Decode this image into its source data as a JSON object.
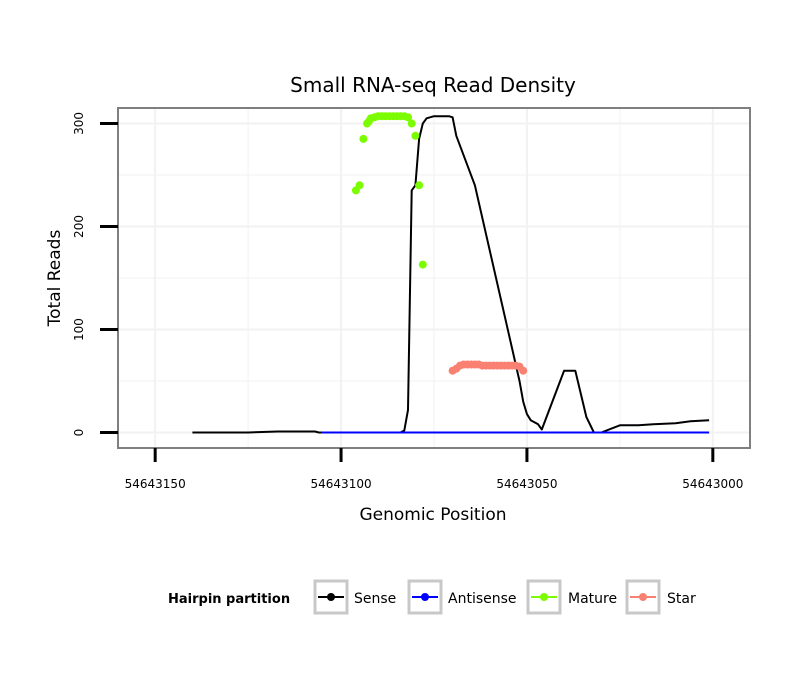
{
  "chart_data": {
    "type": "line",
    "title": "Small RNA-seq Read Density",
    "xlabel": "Genomic Position",
    "ylabel": "Total Reads",
    "x_reversed": true,
    "xlim": [
      54643160,
      54642990
    ],
    "ylim": [
      -15,
      315
    ],
    "xticks": [
      54643150,
      54643100,
      54643050,
      54643000
    ],
    "xtick_labels": [
      "54643150",
      "54643100",
      "54643050",
      "54643000"
    ],
    "yticks": [
      0,
      100,
      200,
      300
    ],
    "ytick_labels": [
      "0",
      "100",
      "200",
      "300"
    ],
    "grid": true,
    "legend": {
      "title": "Hairpin partition",
      "placement": "bottom",
      "entries": [
        {
          "name": "Sense",
          "color": "#000000"
        },
        {
          "name": "Antisense",
          "color": "#0000ff"
        },
        {
          "name": "Mature",
          "color": "#7cfc00"
        },
        {
          "name": "Star",
          "color": "#fa8072"
        }
      ]
    },
    "series": [
      {
        "name": "Sense",
        "color": "#000000",
        "markers": false,
        "x": [
          54643140,
          54643125,
          54643117,
          54643108,
          54643107,
          54643106,
          54643105.3,
          54643105,
          54643104,
          54643103,
          54643100,
          54643096,
          54643090,
          54643087,
          54643086,
          54643085,
          54643084,
          54643083,
          54643082,
          54643081,
          54643080,
          54643079,
          54643078,
          54643077,
          54643075,
          54643071,
          54643070,
          54643069,
          54643064,
          54643052,
          54643051,
          54643050,
          54643049,
          54643048,
          54643047,
          54643046,
          54643040,
          54643037,
          54643034,
          54643032,
          54643030,
          54643025,
          54643023,
          54643020,
          54643016,
          54643010,
          54643006,
          54643001
        ],
        "values": [
          0,
          0,
          1,
          1,
          1,
          0,
          0,
          0,
          0,
          0,
          0,
          0,
          0,
          0,
          0,
          0,
          0,
          2,
          22,
          235,
          240,
          285,
          300,
          305,
          307,
          307,
          306,
          288,
          240,
          50,
          30,
          18,
          12,
          10,
          8,
          3,
          60,
          60,
          15,
          0,
          0,
          7,
          7,
          7,
          8,
          9,
          11,
          12
        ]
      },
      {
        "name": "Antisense",
        "color": "#0000ff",
        "markers": false,
        "x": [
          54643105.3,
          54643001
        ],
        "values": [
          0,
          0
        ]
      },
      {
        "name": "Mature",
        "color": "#7cfc00",
        "markers": true,
        "x": [
          54643096,
          54643095,
          54643094,
          54643093,
          54643092.5,
          54643092,
          54643091,
          54643090,
          54643089,
          54643088,
          54643087,
          54643086,
          54643085,
          54643084,
          54643083,
          54643082,
          54643081,
          54643080,
          54643079,
          54643078
        ],
        "values": [
          235,
          240,
          285,
          300,
          302,
          305,
          306,
          307,
          307,
          307,
          307,
          307,
          307,
          307,
          307,
          306,
          300,
          288,
          240,
          163
        ]
      },
      {
        "name": "Star",
        "color": "#fa8072",
        "markers": true,
        "x": [
          54643070,
          54643069,
          54643068,
          54643067,
          54643066,
          54643065,
          54643064,
          54643063,
          54643062,
          54643061,
          54643060,
          54643059,
          54643058,
          54643057,
          54643056,
          54643055,
          54643054,
          54643053,
          54643052,
          54643051
        ],
        "values": [
          60,
          62,
          65,
          66,
          66,
          66,
          66,
          66,
          65,
          65,
          65,
          65,
          65,
          65,
          65,
          65,
          65,
          65,
          64,
          60
        ]
      }
    ]
  }
}
